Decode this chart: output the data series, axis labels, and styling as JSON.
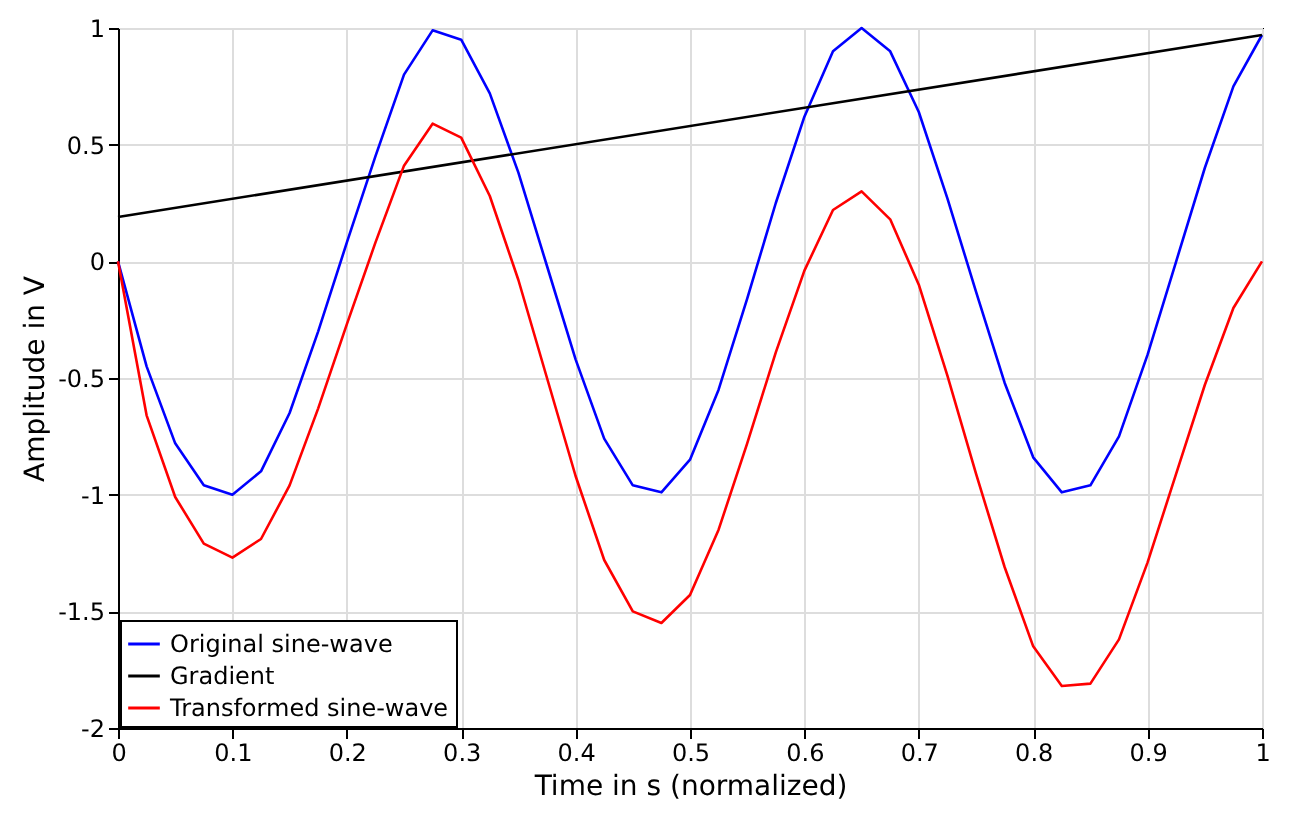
{
  "chart_data": {
    "type": "line",
    "xlabel": "Time in s (normalized)",
    "ylabel": "Amplitude in V",
    "x": [
      0,
      0.025,
      0.05,
      0.075,
      0.1,
      0.125,
      0.15,
      0.175,
      0.2,
      0.225,
      0.25,
      0.275,
      0.3,
      0.325,
      0.35,
      0.375,
      0.4,
      0.425,
      0.45,
      0.475,
      0.5,
      0.525,
      0.55,
      0.575,
      0.6,
      0.625,
      0.65,
      0.675,
      0.7,
      0.725,
      0.75,
      0.775,
      0.8,
      0.825,
      0.85,
      0.875,
      0.9,
      0.925,
      0.95,
      0.975,
      1
    ],
    "series": [
      {
        "name": "Original sine-wave",
        "color": "#0000ff",
        "values": [
          0,
          -0.45,
          -0.78,
          -0.96,
          -1.0,
          -0.9,
          -0.65,
          -0.3,
          0.08,
          0.45,
          0.8,
          0.99,
          0.95,
          0.72,
          0.38,
          -0.02,
          -0.42,
          -0.76,
          -0.96,
          -0.99,
          -0.85,
          -0.55,
          -0.16,
          0.25,
          0.62,
          0.9,
          1.0,
          0.9,
          0.64,
          0.27,
          -0.13,
          -0.52,
          -0.84,
          -0.99,
          -0.96,
          -0.75,
          -0.4,
          0.0,
          0.4,
          0.75,
          0.97
        ]
      },
      {
        "name": "Gradient",
        "color": "#000000",
        "x": [
          0,
          1
        ],
        "values": [
          0.19,
          0.97
        ]
      },
      {
        "name": "Transformed sine-wave",
        "color": "#ff0000",
        "values": [
          0,
          -0.66,
          -1.01,
          -1.21,
          -1.27,
          -1.19,
          -0.96,
          -0.63,
          -0.27,
          0.08,
          0.41,
          0.59,
          0.53,
          0.28,
          -0.08,
          -0.5,
          -0.92,
          -1.28,
          -1.5,
          -1.55,
          -1.43,
          -1.15,
          -0.78,
          -0.39,
          -0.04,
          0.22,
          0.3,
          0.18,
          -0.1,
          -0.49,
          -0.91,
          -1.31,
          -1.65,
          -1.82,
          -1.81,
          -1.62,
          -1.29,
          -0.91,
          -0.53,
          -0.2,
          0
        ]
      }
    ],
    "xlim": [
      0,
      1
    ],
    "xticks": [
      0,
      0.1,
      0.2,
      0.3,
      0.4,
      0.5,
      0.6,
      0.7,
      0.8,
      0.9,
      1
    ],
    "ylim": [
      -2,
      1
    ],
    "yticks": [
      -2,
      -1.5,
      -1,
      -0.5,
      0,
      0.5,
      1
    ],
    "grid": true,
    "legend": "bottom left"
  }
}
